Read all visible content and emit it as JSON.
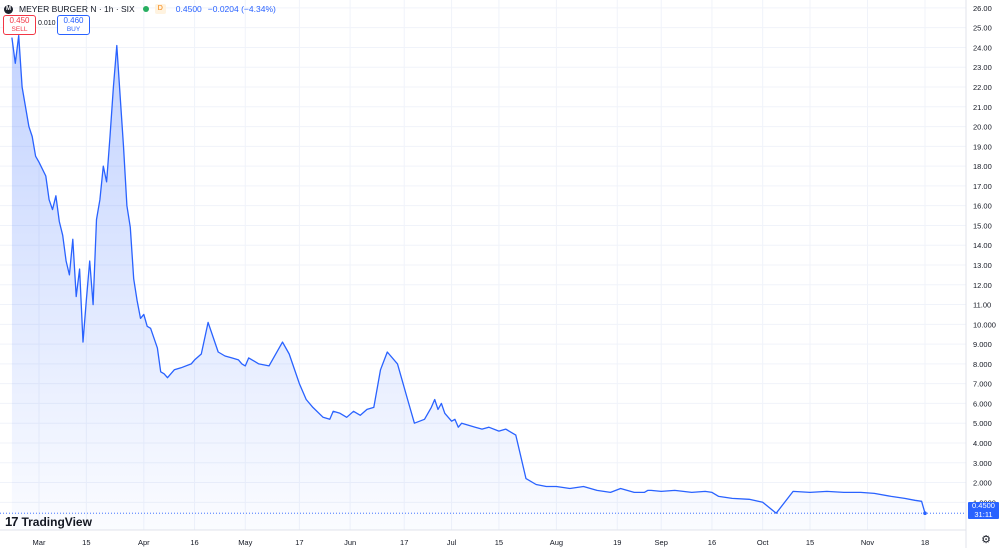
{
  "header": {
    "logo_icon": "meyer-burger-logo-icon",
    "logo_letter": "M",
    "title": "MEYER BURGER N · 1h · SIX",
    "delay_badge": "D",
    "last_price": "0.4500",
    "change": "−0.0204 (−4.34%)",
    "sell_price": "0.450",
    "sell_label": "SELL",
    "spread": "0.010",
    "buy_price": "0.460",
    "buy_label": "BUY"
  },
  "branding": {
    "logo_mark": "17",
    "logo_text": "TradingView"
  },
  "price_tag": {
    "value": "0.4500",
    "countdown": "31:11"
  },
  "colors": {
    "line": "#2962ff",
    "fill_top": "#2962ff",
    "grid": "#f0f3fa",
    "axis_text": "#131722",
    "price_tag_bg": "#2962ff"
  },
  "chart_data": {
    "type": "area",
    "title": "",
    "xlabel": "",
    "ylabel": "",
    "ylim": [
      -0.4,
      26.4
    ],
    "y_ticks": [
      "26.00",
      "25.00",
      "24.00",
      "23.00",
      "22.00",
      "21.00",
      "20.00",
      "19.00",
      "18.00",
      "17.00",
      "16.00",
      "15.00",
      "14.00",
      "13.00",
      "12.00",
      "11.00",
      "10.000",
      "9.000",
      "8.000",
      "7.000",
      "6.000",
      "5.000",
      "4.000",
      "3.000",
      "2.000",
      "1.0000"
    ],
    "y_tick_values": [
      26,
      25,
      24,
      23,
      22,
      21,
      20,
      19,
      18,
      17,
      16,
      15,
      14,
      13,
      12,
      11,
      10,
      9,
      8,
      7,
      6,
      5,
      4,
      3,
      2,
      1
    ],
    "x_tick_labels": [
      "Mar",
      "15",
      "Apr",
      "16",
      "May",
      "17",
      "Jun",
      "17",
      "Jul",
      "15",
      "Aug",
      "19",
      "Sep",
      "16",
      "Oct",
      "15",
      "Nov",
      "18"
    ],
    "x_tick_dates": [
      "2024-03-01",
      "2024-03-15",
      "2024-04-01",
      "2024-04-16",
      "2024-05-01",
      "2024-05-17",
      "2024-06-01",
      "2024-06-17",
      "2024-07-01",
      "2024-07-15",
      "2024-08-01",
      "2024-08-19",
      "2024-09-01",
      "2024-09-16",
      "2024-10-01",
      "2024-10-15",
      "2024-11-01",
      "2024-11-18"
    ],
    "grid": true,
    "legend": "none",
    "series": [
      {
        "x": [
          "2024-02-22",
          "2024-02-23",
          "2024-02-24",
          "2024-02-25",
          "2024-02-27",
          "2024-02-28",
          "2024-02-29",
          "2024-03-01",
          "2024-03-03",
          "2024-03-04",
          "2024-03-05",
          "2024-03-06",
          "2024-03-07",
          "2024-03-08",
          "2024-03-09",
          "2024-03-10",
          "2024-03-11",
          "2024-03-12",
          "2024-03-13",
          "2024-03-14",
          "2024-03-15",
          "2024-03-16",
          "2024-03-17",
          "2024-03-18",
          "2024-03-19",
          "2024-03-20",
          "2024-03-21",
          "2024-03-22",
          "2024-03-23",
          "2024-03-24",
          "2024-03-25",
          "2024-03-26",
          "2024-03-27",
          "2024-03-28",
          "2024-03-29",
          "2024-03-30",
          "2024-03-31",
          "2024-04-01",
          "2024-04-02",
          "2024-04-03",
          "2024-04-05",
          "2024-04-06",
          "2024-04-07",
          "2024-04-08",
          "2024-04-10",
          "2024-04-12",
          "2024-04-15",
          "2024-04-16",
          "2024-04-18",
          "2024-04-20",
          "2024-04-23",
          "2024-04-25",
          "2024-04-27",
          "2024-04-29",
          "2024-04-30",
          "2024-05-01",
          "2024-05-02",
          "2024-05-05",
          "2024-05-08",
          "2024-05-12",
          "2024-05-14",
          "2024-05-17",
          "2024-05-19",
          "2024-05-21",
          "2024-05-24",
          "2024-05-26",
          "2024-05-27",
          "2024-05-29",
          "2024-05-31",
          "2024-06-02",
          "2024-06-04",
          "2024-06-06",
          "2024-06-08",
          "2024-06-10",
          "2024-06-12",
          "2024-06-15",
          "2024-06-18",
          "2024-06-20",
          "2024-06-23",
          "2024-06-25",
          "2024-06-26",
          "2024-06-27",
          "2024-06-28",
          "2024-06-29",
          "2024-07-01",
          "2024-07-02",
          "2024-07-03",
          "2024-07-04",
          "2024-07-06",
          "2024-07-08",
          "2024-07-10",
          "2024-07-12",
          "2024-07-15",
          "2024-07-17",
          "2024-07-20",
          "2024-07-23",
          "2024-07-26",
          "2024-07-29",
          "2024-08-01",
          "2024-08-05",
          "2024-08-09",
          "2024-08-13",
          "2024-08-17",
          "2024-08-20",
          "2024-08-24",
          "2024-08-27",
          "2024-08-28",
          "2024-08-29",
          "2024-09-01",
          "2024-09-05",
          "2024-09-10",
          "2024-09-14",
          "2024-09-16",
          "2024-09-18",
          "2024-09-22",
          "2024-09-27",
          "2024-10-01",
          "2024-10-05",
          "2024-10-10",
          "2024-10-15",
          "2024-10-20",
          "2024-10-25",
          "2024-10-30",
          "2024-11-03",
          "2024-11-08",
          "2024-11-12",
          "2024-11-15",
          "2024-11-17",
          "2024-11-18"
        ],
        "values": [
          24.5,
          23.2,
          24.6,
          22.0,
          20.0,
          19.5,
          18.5,
          18.2,
          17.5,
          16.3,
          15.8,
          16.5,
          15.2,
          14.5,
          13.2,
          12.5,
          14.3,
          11.4,
          12.8,
          9.1,
          11.2,
          13.2,
          11.0,
          15.3,
          16.3,
          18.0,
          17.2,
          19.5,
          22.0,
          24.1,
          21.5,
          19.0,
          16.0,
          14.9,
          12.3,
          11.2,
          10.3,
          10.5,
          9.9,
          9.8,
          8.8,
          7.6,
          7.5,
          7.3,
          7.7,
          7.8,
          8.0,
          8.2,
          8.5,
          10.1,
          8.6,
          8.4,
          8.3,
          8.2,
          8.0,
          7.9,
          8.3,
          8.0,
          7.9,
          9.1,
          8.5,
          7.0,
          6.2,
          5.8,
          5.3,
          5.2,
          5.6,
          5.5,
          5.3,
          5.6,
          5.4,
          5.7,
          5.8,
          7.7,
          8.6,
          8.0,
          6.2,
          5.0,
          5.2,
          5.8,
          6.2,
          5.7,
          6.0,
          5.5,
          5.1,
          5.2,
          4.8,
          5.0,
          4.9,
          4.8,
          4.7,
          4.8,
          4.6,
          4.7,
          4.4,
          2.2,
          1.9,
          1.8,
          1.8,
          1.7,
          1.8,
          1.6,
          1.5,
          1.7,
          1.5,
          1.5,
          1.6,
          1.6,
          1.55,
          1.6,
          1.5,
          1.55,
          1.5,
          1.3,
          1.2,
          1.15,
          1.0,
          0.45,
          1.55,
          1.5,
          1.55,
          1.5,
          1.5,
          1.45,
          1.3,
          1.2,
          1.1,
          1.05,
          0.45
        ]
      }
    ]
  }
}
